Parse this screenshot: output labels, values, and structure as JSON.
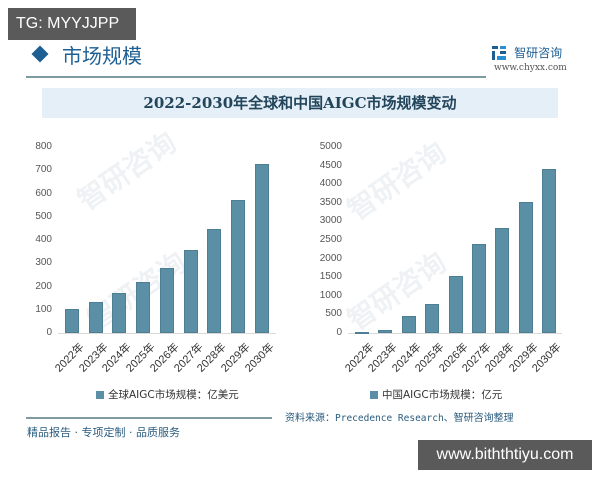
{
  "overlay": {
    "top_badge": "TG: MYYJJPP",
    "bottom_badge": "www.biththtiyu.com"
  },
  "header": {
    "section_title": "市场规模",
    "brand_name": "智研咨询",
    "brand_url": "www.chyxx.com"
  },
  "title": "2022-2030年全球和中国AIGC市场规模变动",
  "footer": {
    "tagline": "精品报告 · 专项定制 · 品质服务",
    "source_label": "资料来源：",
    "source_text": "Precedence Research",
    "source_suffix": "、智研咨询整理"
  },
  "watermark": "智研咨询",
  "colors": {
    "bar": "#5b8fa6",
    "accent": "#1e5f93",
    "title_bg": "#e4eff8"
  },
  "chart_data": [
    {
      "type": "bar",
      "title": "全球AIGC市场规模",
      "categories": [
        "2022年",
        "2023年",
        "2024年",
        "2025年",
        "2026年",
        "2027年",
        "2028年",
        "2029年",
        "2030年"
      ],
      "values": [
        105,
        135,
        170,
        219,
        278,
        355,
        449,
        570,
        728
      ],
      "legend": "全球AIGC市场规模：亿美元",
      "unit": "亿美元",
      "xlabel": "",
      "ylabel": "",
      "ylim": [
        0,
        800
      ],
      "yticks": [
        "0",
        "100",
        "200",
        "300",
        "400",
        "500",
        "600",
        "700",
        "800"
      ],
      "grid": false,
      "legend_position": "bottom"
    },
    {
      "type": "bar",
      "title": "中国AIGC市场规模",
      "categories": [
        "2022年",
        "2023年",
        "2024年",
        "2025年",
        "2026年",
        "2027年",
        "2028年",
        "2029年",
        "2030年"
      ],
      "values": [
        10,
        70,
        458,
        781,
        1544,
        2398,
        2829,
        3519,
        4408
      ],
      "legend": "中国AIGC市场规模：亿元",
      "unit": "亿元",
      "xlabel": "",
      "ylabel": "",
      "ylim": [
        0,
        5000
      ],
      "yticks": [
        "0",
        "500",
        "1000",
        "1500",
        "2000",
        "2500",
        "3000",
        "3500",
        "4000",
        "4500",
        "5000"
      ],
      "grid": false,
      "legend_position": "bottom"
    }
  ]
}
